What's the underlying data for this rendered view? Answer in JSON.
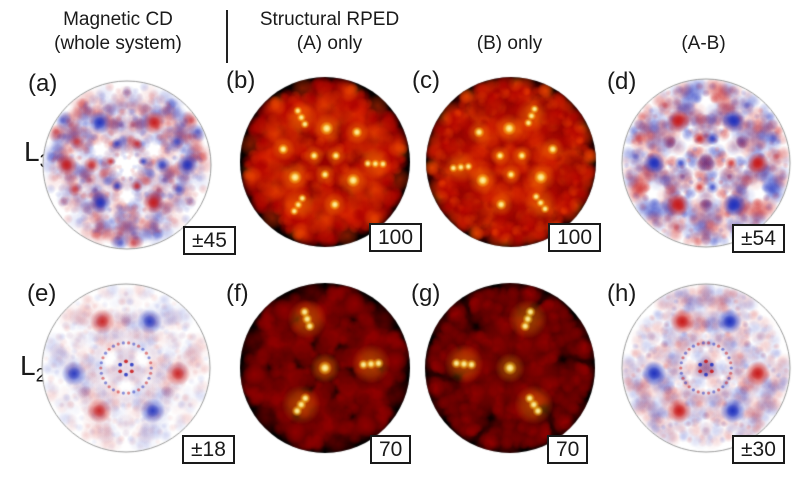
{
  "headers": {
    "col1": "Magnetic CD\n(whole system)",
    "col2": "Structural RPED\n(A) only",
    "col3": "(B) only",
    "col4": "(A-B)"
  },
  "rows": {
    "r1": {
      "base": "L",
      "sub": "3"
    },
    "r2": {
      "base": "L",
      "sub": "2"
    }
  },
  "colors": {
    "div_red": "200,25,25",
    "div_blue": "30,48,190",
    "hot_glow": "255,130,0",
    "hot_mid": "255,204,40",
    "hot_core": "255,248,180",
    "circle_border": "#9a9a9a"
  },
  "panels": {
    "a": {
      "label": "(a)",
      "badge": "±45",
      "type": "diverging",
      "seed": 7,
      "noise": {
        "count": 150,
        "alpha": 0.22
      },
      "features": [
        {
          "a": 180,
          "r": 0.72,
          "s": 0.13,
          "g": 1,
          "al": 0.8
        },
        {
          "a": 123,
          "r": 0.6,
          "s": 0.14,
          "g": -1,
          "al": 0.8
        },
        {
          "a": 235,
          "r": 0.55,
          "s": 0.13,
          "g": -1,
          "al": 0.8
        },
        {
          "a": 180,
          "r": 0.42,
          "s": 0.1,
          "g": 1,
          "al": 0.6
        },
        {
          "a": 155,
          "r": 0.66,
          "s": 0.09,
          "g": 1,
          "al": 0.45
        },
        {
          "a": 205,
          "r": 0.68,
          "s": 0.09,
          "g": 1,
          "al": 0.45
        },
        {
          "a": 115,
          "r": 0.28,
          "s": 0.07,
          "g": -1,
          "al": 0.55
        },
        {
          "a": 245,
          "r": 0.28,
          "s": 0.07,
          "g": -1,
          "al": 0.5
        },
        {
          "a": 168,
          "r": 0.2,
          "s": 0.06,
          "g": 1,
          "al": 0.55
        }
      ]
    },
    "b": {
      "label": "(b)",
      "badge": "100",
      "type": "hot",
      "seed": 41,
      "base": [
        "#7a1200",
        "#380500"
      ],
      "noise": {
        "count": 130,
        "lo": 0.3,
        "range": 0.5
      },
      "features": [
        {
          "a": 118,
          "r": 0.6,
          "s": 0.11,
          "rep": 3,
          "streak": true
        },
        {
          "a": 87,
          "r": 0.4,
          "s": 0.1,
          "rep": 3
        },
        {
          "a": 163,
          "r": 0.52,
          "s": 0.08,
          "rep": 3
        },
        {
          "a": 30,
          "r": 0.15,
          "s": 0.07,
          "rep": 3
        }
      ]
    },
    "c": {
      "label": "(c)",
      "badge": "100",
      "type": "hot",
      "seed": 43,
      "base": [
        "#7a1200",
        "#380500"
      ],
      "noise": {
        "count": 130,
        "lo": 0.3,
        "range": 0.5
      },
      "features": [
        {
          "a": 66,
          "r": 0.6,
          "s": 0.11,
          "rep": 3,
          "streak": true
        },
        {
          "a": 93,
          "r": 0.4,
          "s": 0.1,
          "rep": 3
        },
        {
          "a": 17,
          "r": 0.52,
          "s": 0.08,
          "rep": 3
        },
        {
          "a": 150,
          "r": 0.15,
          "s": 0.07,
          "rep": 3
        }
      ]
    },
    "d": {
      "label": "(d)",
      "badge": "±54",
      "type": "diverging",
      "seed": 19,
      "noise": {
        "count": 150,
        "alpha": 0.24
      },
      "features": [
        {
          "a": 124,
          "r": 0.6,
          "s": 0.14,
          "g": 1,
          "al": 0.85
        },
        {
          "a": 236,
          "r": 0.6,
          "s": 0.14,
          "g": 1,
          "al": 0.85
        },
        {
          "a": 180,
          "r": 0.62,
          "s": 0.13,
          "g": -1,
          "al": 0.85
        },
        {
          "a": 105,
          "r": 0.3,
          "s": 0.08,
          "g": 1,
          "al": 0.6
        },
        {
          "a": 255,
          "r": 0.3,
          "s": 0.08,
          "g": 1,
          "al": 0.55
        },
        {
          "a": 180,
          "r": 0.3,
          "s": 0.08,
          "g": -1,
          "al": 0.55
        },
        {
          "a": 160,
          "r": 0.85,
          "s": 0.1,
          "g": 1,
          "al": 0.4
        },
        {
          "a": 202,
          "r": 0.85,
          "s": 0.1,
          "g": 1,
          "al": 0.35
        }
      ]
    },
    "e": {
      "label": "(e)",
      "badge": "±18",
      "type": "diverging",
      "seed": 23,
      "noise": {
        "count": 130,
        "alpha": 0.09
      },
      "ring": true,
      "features": [
        {
          "a": 117,
          "r": 0.62,
          "s": 0.15,
          "g": 1,
          "al": 0.7
        },
        {
          "a": 186,
          "r": 0.62,
          "s": 0.15,
          "g": -1,
          "al": 0.7
        },
        {
          "a": 238,
          "r": 0.6,
          "s": 0.15,
          "g": 1,
          "al": 0.7
        }
      ]
    },
    "f": {
      "label": "(f)",
      "badge": "70",
      "type": "hot",
      "seed": 57,
      "base": [
        "#230300",
        "#0c0000"
      ],
      "noise": {
        "count": 120,
        "lo": 0.08,
        "range": 0.4
      },
      "features": [
        {
          "a": 0,
          "r": 0,
          "s": 0.1,
          "rep": 1
        },
        {
          "a": 110,
          "r": 0.62,
          "s": 0.13,
          "rep": 1,
          "streak": true
        },
        {
          "a": 5,
          "r": 0.55,
          "s": 0.13,
          "rep": 1,
          "streak": true
        },
        {
          "a": 237,
          "r": 0.52,
          "s": 0.13,
          "rep": 1,
          "streak": true
        }
      ]
    },
    "g": {
      "label": "(g)",
      "badge": "70",
      "type": "hot",
      "seed": 61,
      "base": [
        "#230300",
        "#0c0000"
      ],
      "noise": {
        "count": 120,
        "lo": 0.08,
        "range": 0.4
      },
      "features": [
        {
          "a": 0,
          "r": 0,
          "s": 0.1,
          "rep": 1
        },
        {
          "a": 70,
          "r": 0.62,
          "s": 0.13,
          "rep": 1,
          "streak": true
        },
        {
          "a": 175,
          "r": 0.55,
          "s": 0.13,
          "rep": 1,
          "streak": true
        },
        {
          "a": 303,
          "r": 0.52,
          "s": 0.13,
          "rep": 1,
          "streak": true
        }
      ]
    },
    "h": {
      "label": "(h)",
      "badge": "±30",
      "type": "diverging",
      "seed": 29,
      "noise": {
        "count": 130,
        "alpha": 0.15
      },
      "ring": true,
      "features": [
        {
          "a": 117,
          "r": 0.62,
          "s": 0.15,
          "g": 1,
          "al": 0.85
        },
        {
          "a": 186,
          "r": 0.62,
          "s": 0.15,
          "g": -1,
          "al": 0.85
        },
        {
          "a": 238,
          "r": 0.6,
          "s": 0.15,
          "g": 1,
          "al": 0.85
        }
      ]
    }
  }
}
